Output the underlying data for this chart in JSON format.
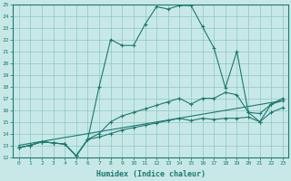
{
  "xlabel": "Humidex (Indice chaleur)",
  "xlim": [
    -0.5,
    23.5
  ],
  "ylim": [
    12,
    25
  ],
  "yticks": [
    12,
    13,
    14,
    15,
    16,
    17,
    18,
    19,
    20,
    21,
    22,
    23,
    24,
    25
  ],
  "xticks": [
    0,
    1,
    2,
    3,
    4,
    5,
    6,
    7,
    8,
    9,
    10,
    11,
    12,
    13,
    14,
    15,
    16,
    17,
    18,
    19,
    20,
    21,
    22,
    23
  ],
  "line_color": "#1a7a6e",
  "bg_color": "#c8e8e8",
  "grid_color": "#8cc8c0",
  "series": {
    "main": {
      "x": [
        0,
        1,
        2,
        3,
        4,
        5,
        6,
        7,
        8,
        9,
        10,
        11,
        12,
        13,
        14,
        15,
        16,
        17,
        18,
        19,
        20,
        21,
        22,
        23
      ],
      "y": [
        12.8,
        13.0,
        13.3,
        13.2,
        13.1,
        12.1,
        13.5,
        18.0,
        22.0,
        21.5,
        21.5,
        23.3,
        24.8,
        24.6,
        24.9,
        24.9,
        23.1,
        21.3,
        17.9,
        21.0,
        15.8,
        15.0,
        16.5,
        16.8
      ]
    },
    "upper": {
      "x": [
        0,
        1,
        2,
        3,
        4,
        5,
        6,
        7,
        8,
        9,
        10,
        11,
        12,
        13,
        14,
        15,
        16,
        17,
        18,
        19,
        20,
        21,
        22,
        23
      ],
      "y": [
        12.8,
        13.0,
        13.3,
        13.2,
        13.1,
        12.1,
        13.5,
        14.0,
        15.0,
        15.5,
        15.8,
        16.1,
        16.4,
        16.7,
        17.0,
        16.5,
        17.0,
        17.0,
        17.5,
        17.3,
        15.8,
        15.7,
        16.5,
        17.0
      ]
    },
    "lower": {
      "x": [
        0,
        1,
        2,
        3,
        4,
        5,
        6,
        7,
        8,
        9,
        10,
        11,
        12,
        13,
        14,
        15,
        16,
        17,
        18,
        19,
        20,
        21,
        22,
        23
      ],
      "y": [
        12.8,
        13.0,
        13.3,
        13.2,
        13.1,
        12.1,
        13.5,
        13.7,
        14.0,
        14.3,
        14.5,
        14.7,
        14.9,
        15.1,
        15.3,
        15.1,
        15.3,
        15.2,
        15.3,
        15.3,
        15.4,
        15.0,
        15.8,
        16.2
      ]
    },
    "trend": {
      "x": [
        0,
        23
      ],
      "y": [
        13.0,
        16.8
      ]
    }
  }
}
